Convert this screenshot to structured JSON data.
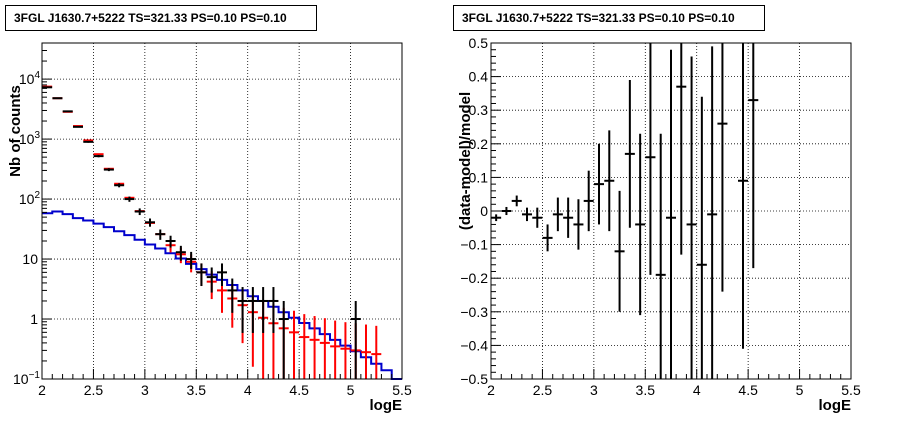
{
  "chart_data": [
    {
      "type": "scatter",
      "title": "3FGL J1630.7+5222 TS=321.33 PS=0.10 PS=0.10",
      "xlabel": "logE",
      "ylabel": "Nb of counts",
      "xlim": [
        2,
        5.5
      ],
      "ylim": [
        0.1,
        40000
      ],
      "yscale": "log",
      "grid": true,
      "xticks": [
        "2",
        "2.5",
        "3",
        "3.5",
        "4",
        "4.5",
        "5",
        "5.5"
      ],
      "yticks": [
        "10^-1",
        "1",
        "10",
        "10^2",
        "10^3",
        "10^4"
      ],
      "x_bin_edges": [
        2.0,
        2.1,
        2.2,
        2.3,
        2.4,
        2.5,
        2.6,
        2.7,
        2.8,
        2.9,
        3.0,
        3.1,
        3.2,
        3.3,
        3.4,
        3.5,
        3.6,
        3.7,
        3.8,
        3.9,
        4.0,
        4.1,
        4.2,
        4.3,
        4.4,
        4.5,
        4.6,
        4.7,
        4.8,
        4.9,
        5.0,
        5.1,
        5.2,
        5.3,
        5.4,
        5.5
      ],
      "series": [
        {
          "kind": "counts",
          "color": "#000000",
          "x": [
            2.05,
            2.15,
            2.25,
            2.35,
            2.45,
            2.55,
            2.65,
            2.75,
            2.85,
            2.95,
            3.05,
            3.15,
            3.25,
            3.35,
            3.45,
            3.55,
            3.65,
            3.75,
            3.85,
            3.95,
            4.05,
            4.15,
            4.25,
            4.35,
            5.05
          ],
          "y": [
            7300,
            4800,
            2900,
            1600,
            900,
            520,
            310,
            170,
            100,
            62,
            41,
            26,
            20,
            13,
            10,
            6,
            5,
            6,
            3,
            2,
            2,
            2,
            2,
            1,
            1
          ]
        },
        {
          "kind": "model",
          "color": "#ff0000",
          "x": [
            2.05,
            2.15,
            2.25,
            2.35,
            2.45,
            2.55,
            2.65,
            2.75,
            2.85,
            2.95,
            3.05,
            3.15,
            3.25,
            3.35,
            3.45,
            3.55,
            3.65,
            3.75,
            3.85,
            3.95,
            4.05,
            4.15,
            4.25,
            4.35,
            4.45,
            4.55,
            4.65,
            4.75,
            4.85,
            4.95,
            5.05,
            5.15,
            5.25
          ],
          "y": [
            7500,
            4800,
            2850,
            1650,
            950,
            560,
            320,
            180,
            105,
            63,
            40,
            26,
            17,
            12,
            9,
            6,
            4.2,
            3,
            2.2,
            1.7,
            1.3,
            1.05,
            0.85,
            0.7,
            0.6,
            0.5,
            0.45,
            0.4,
            0.35,
            0.32,
            0.3,
            0.28,
            0.26
          ]
        },
        {
          "kind": "component",
          "color": "#0000cc",
          "bin_values": [
            58,
            62,
            56,
            48,
            44,
            39,
            34,
            29,
            25,
            21,
            17.5,
            15,
            12.5,
            10.2,
            8.3,
            6.8,
            5.5,
            4.5,
            3.7,
            3,
            2.4,
            2,
            1.6,
            1.3,
            1.05,
            0.86,
            0.7,
            0.56,
            0.45,
            0.36,
            0.29,
            0.23,
            0.18,
            0.14,
            0.1
          ]
        }
      ]
    },
    {
      "type": "scatter",
      "title": "3FGL J1630.7+5222 TS=321.33 PS=0.10 PS=0.10",
      "xlabel": "logE",
      "ylabel": "(data-model)/model",
      "xlim": [
        2,
        5.5
      ],
      "ylim": [
        -0.5,
        0.5
      ],
      "grid": true,
      "xticks": [
        "2",
        "2.5",
        "3",
        "3.5",
        "4",
        "4.5",
        "5",
        "5.5"
      ],
      "yticks": [
        "−0.5",
        "−0.4",
        "−0.3",
        "−0.2",
        "−0.1",
        "0",
        "0.1",
        "0.2",
        "0.3",
        "0.4",
        "0.5"
      ],
      "series": [
        {
          "kind": "residuals",
          "color": "#000000",
          "x": [
            2.05,
            2.15,
            2.25,
            2.35,
            2.45,
            2.55,
            2.65,
            2.75,
            2.85,
            2.95,
            3.05,
            3.15,
            3.25,
            3.35,
            3.45,
            3.55,
            3.65,
            3.75,
            3.85,
            3.95,
            4.05,
            4.15,
            4.25,
            4.45,
            4.55
          ],
          "y": [
            -0.02,
            0.0,
            0.03,
            -0.01,
            -0.02,
            -0.08,
            -0.01,
            -0.02,
            -0.04,
            0.03,
            0.08,
            0.09,
            -0.12,
            0.17,
            -0.04,
            0.16,
            -0.19,
            -0.02,
            0.37,
            -0.04,
            -0.16,
            -0.01,
            0.26,
            0.09,
            0.33
          ],
          "err": [
            0.01,
            0.012,
            0.016,
            0.02,
            0.03,
            0.04,
            0.05,
            0.06,
            0.075,
            0.09,
            0.12,
            0.15,
            0.18,
            0.22,
            0.27,
            0.35,
            0.42,
            0.5,
            0.5,
            0.5,
            0.5,
            0.5,
            0.5,
            0.5,
            0.5
          ]
        }
      ]
    }
  ]
}
